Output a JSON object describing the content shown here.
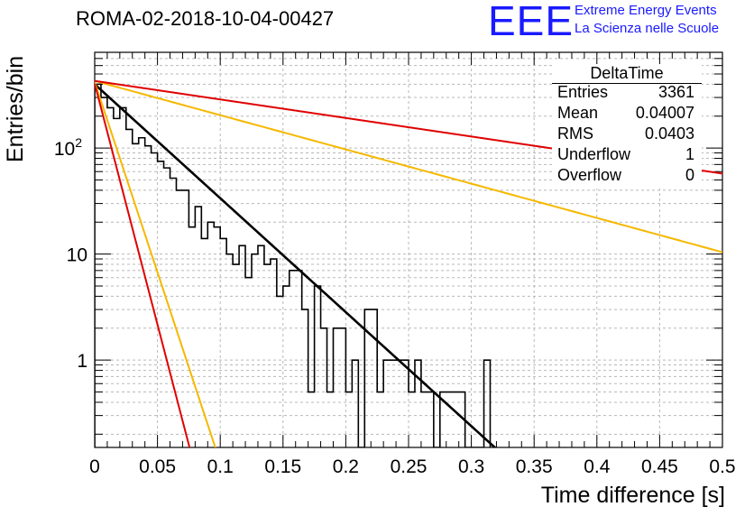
{
  "title": "ROMA-02-2018-10-04-00427",
  "logo": {
    "text": "EEE",
    "line1": "Extreme Energy Events",
    "line2": "La Scienza nelle Scuole",
    "color": "#1a1aff"
  },
  "stats_box": {
    "name": "DeltaTime",
    "rows": [
      {
        "label": "Entries",
        "value": "3361"
      },
      {
        "label": "Mean",
        "value": "0.04007"
      },
      {
        "label": "RMS",
        "value": "0.0403"
      },
      {
        "label": "Underflow",
        "value": "1"
      },
      {
        "label": "Overflow",
        "value": "0"
      }
    ]
  },
  "chart_data": {
    "type": "histogram",
    "title": "ROMA-02-2018-10-04-00427",
    "xlabel": "Time difference [s]",
    "ylabel": "Entries/bin",
    "xlim": [
      0,
      0.5
    ],
    "ylim": [
      0.15,
      800
    ],
    "yscale": "log",
    "grid": true,
    "xticks": [
      "0",
      "0.05",
      "0.1",
      "0.15",
      "0.2",
      "0.25",
      "0.3",
      "0.35",
      "0.4",
      "0.45",
      "0.5"
    ],
    "yticks": [
      {
        "value": 1,
        "label": "1"
      },
      {
        "value": 10,
        "label": "10"
      },
      {
        "value": 100,
        "label": "10^2"
      }
    ],
    "bin_width": 0.005,
    "counts": [
      400,
      300,
      240,
      190,
      240,
      150,
      110,
      125,
      105,
      90,
      75,
      65,
      52,
      40,
      40,
      18,
      28,
      14,
      20,
      18,
      14,
      10,
      8,
      12,
      6,
      10,
      12,
      8,
      9,
      4,
      5,
      7,
      7,
      3,
      0.5,
      5,
      2,
      0.5,
      2,
      2,
      0.5,
      1,
      0,
      3,
      3,
      0.5,
      1,
      1,
      1,
      1,
      0.5,
      1,
      0.5,
      0.5,
      0,
      0.5,
      0.5,
      0.5,
      0.5,
      0,
      0,
      0,
      1
    ],
    "fits": [
      {
        "name": "fit",
        "color": "#000000",
        "A": 400,
        "tau": 0.0404
      },
      {
        "name": "upper-fast",
        "color": "#f5b800",
        "A": 420,
        "tau": 0.0121
      },
      {
        "name": "upper-slow",
        "color": "#f5b800",
        "A": 430,
        "tau": 0.1344
      },
      {
        "name": "lower-fast",
        "color": "#e00000",
        "A": 405,
        "tau": 0.00956
      },
      {
        "name": "lower-slow",
        "color": "#e00000",
        "A": 430,
        "tau": 0.2484
      }
    ],
    "stats": {
      "entries": 3361,
      "mean": 0.04007,
      "rms": 0.0403,
      "underflow": 1,
      "overflow": 0
    }
  }
}
